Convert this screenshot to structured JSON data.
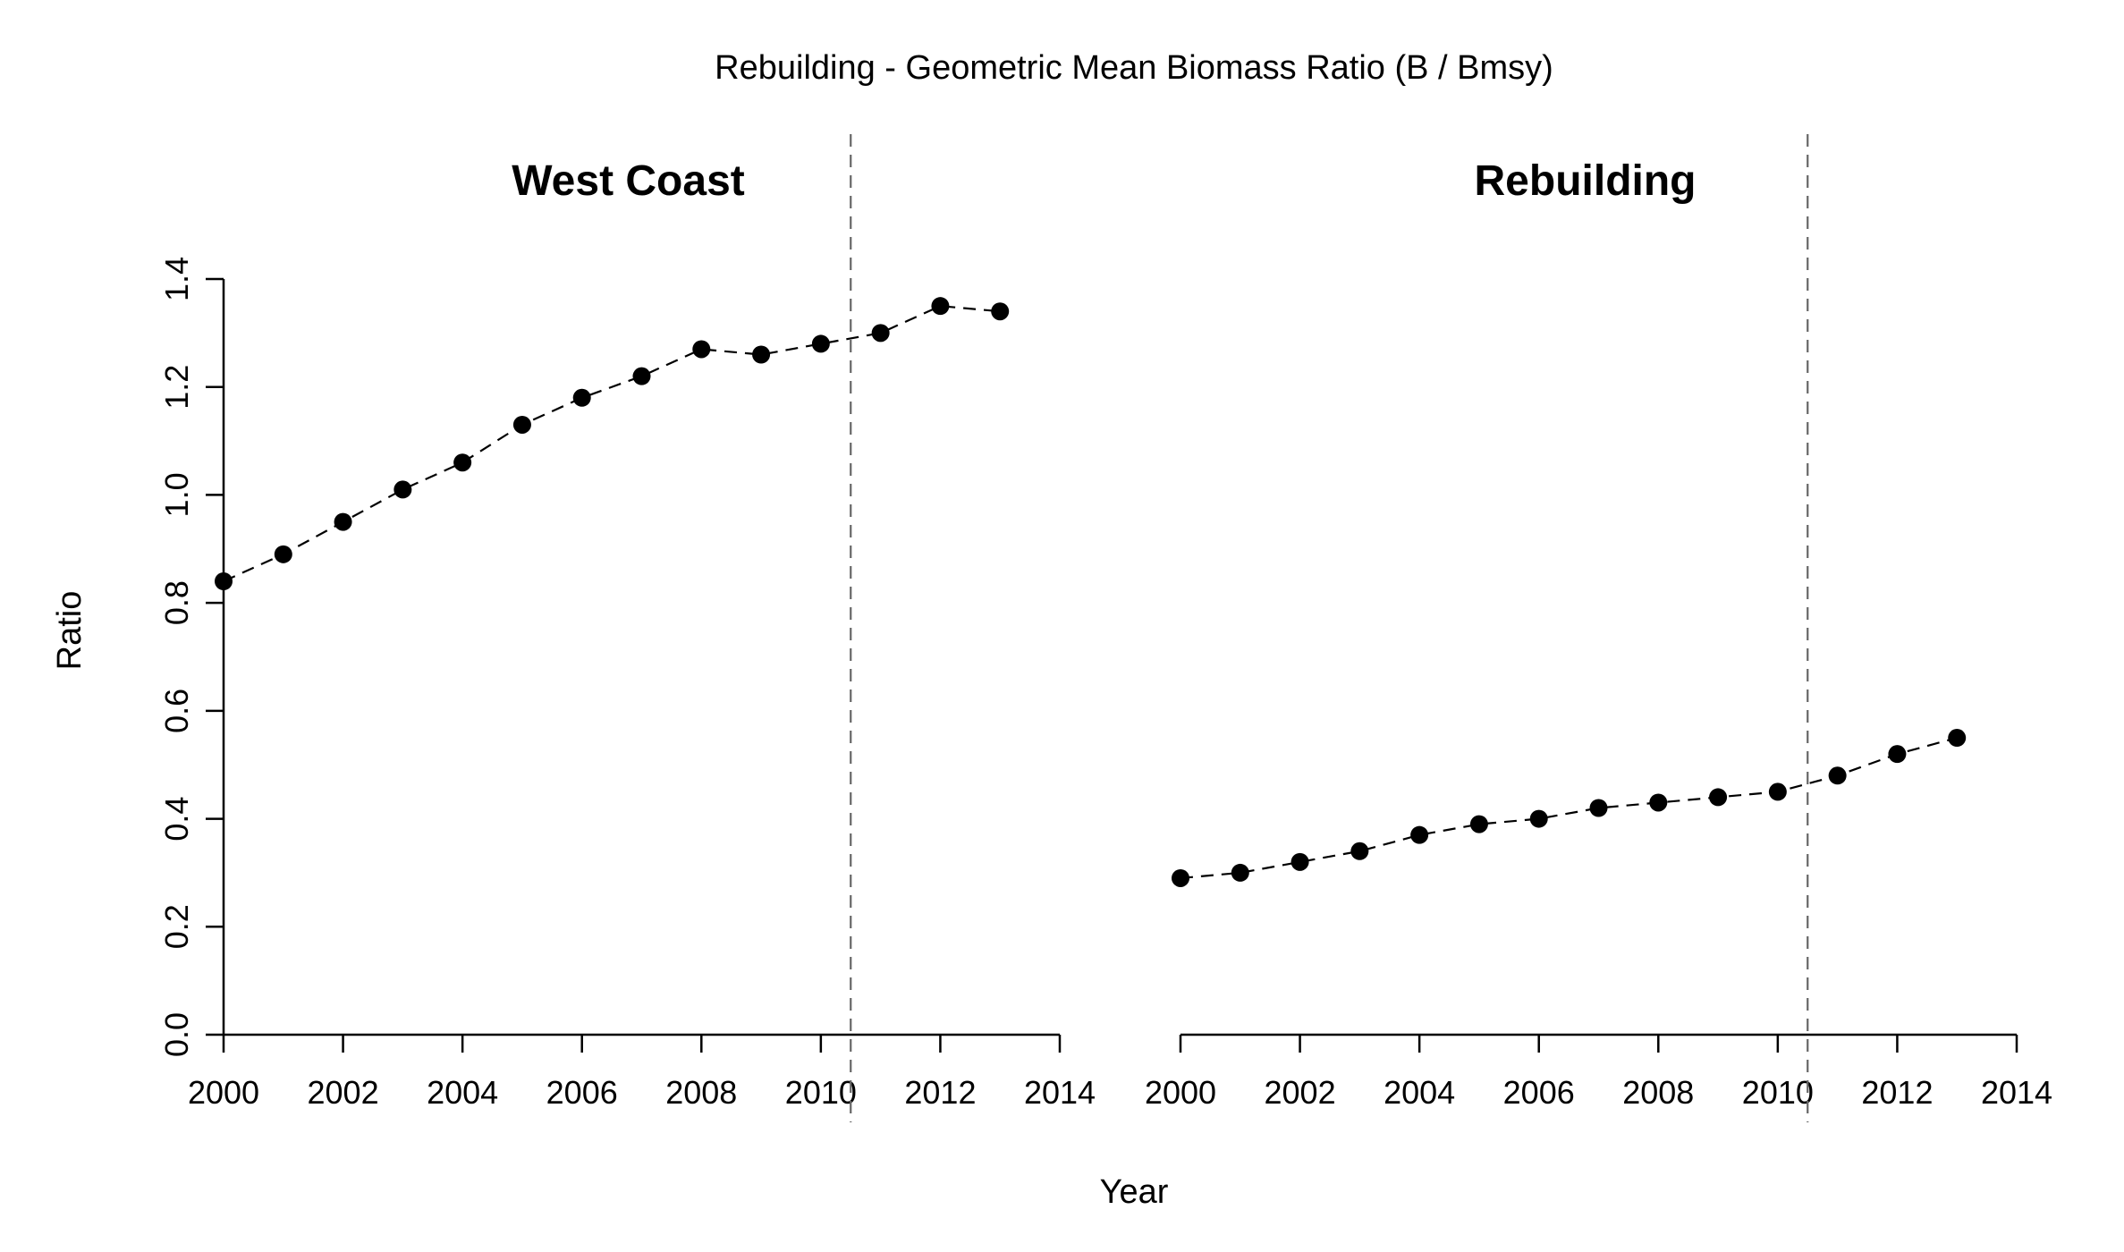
{
  "chart_data": {
    "type": "scatter",
    "title": "Rebuilding - Geometric Mean Biomass Ratio (B / Bmsy)",
    "xlabel": "Year",
    "ylabel": "Ratio",
    "xlim": [
      2000,
      2014
    ],
    "ylim": [
      0,
      1.4
    ],
    "x_ticks": [
      2000,
      2002,
      2004,
      2006,
      2008,
      2010,
      2012,
      2014
    ],
    "x_tick_labels": [
      "2000",
      "2002",
      "2004",
      "2006",
      "2008",
      "2010",
      "2012",
      "2014"
    ],
    "y_ticks": [
      0,
      0.2,
      0.4,
      0.6,
      0.8,
      1.0,
      1.2,
      1.4
    ],
    "y_tick_labels": [
      "0.0",
      "0.2",
      "0.4",
      "0.6",
      "0.8",
      "1.0",
      "1.2",
      "1.4"
    ],
    "reference_line_x": 2010.5,
    "grid": false,
    "panels": [
      {
        "title": "West Coast",
        "x": [
          2000,
          2001,
          2002,
          2003,
          2004,
          2005,
          2006,
          2007,
          2008,
          2009,
          2010,
          2011,
          2012,
          2013
        ],
        "y": [
          0.84,
          0.89,
          0.95,
          1.01,
          1.06,
          1.13,
          1.18,
          1.22,
          1.27,
          1.26,
          1.28,
          1.3,
          1.35,
          1.34
        ]
      },
      {
        "title": "Rebuilding",
        "x": [
          2000,
          2001,
          2002,
          2003,
          2004,
          2005,
          2006,
          2007,
          2008,
          2009,
          2010,
          2011,
          2012,
          2013
        ],
        "y": [
          0.29,
          0.3,
          0.32,
          0.34,
          0.37,
          0.39,
          0.4,
          0.42,
          0.43,
          0.44,
          0.45,
          0.48,
          0.52,
          0.55
        ]
      }
    ]
  }
}
